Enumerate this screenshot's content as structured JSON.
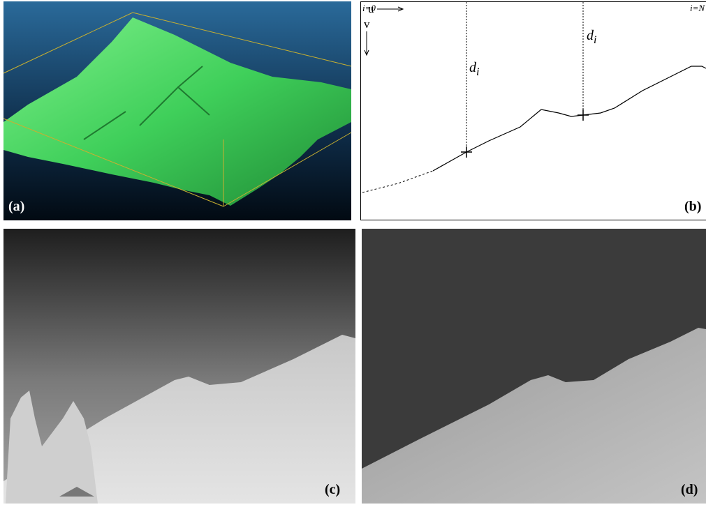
{
  "panels": {
    "a": {
      "label": "(a)"
    },
    "b": {
      "label": "(b)",
      "start": "i=0",
      "end": "i=N",
      "u_axis": "u",
      "v_axis": "v",
      "distance_1": {
        "symbol": "d",
        "subscript": "i"
      },
      "distance_2": {
        "symbol": "d",
        "subscript": "i"
      }
    },
    "c": {
      "label": "(c)"
    },
    "d": {
      "label": "(d)"
    }
  }
}
